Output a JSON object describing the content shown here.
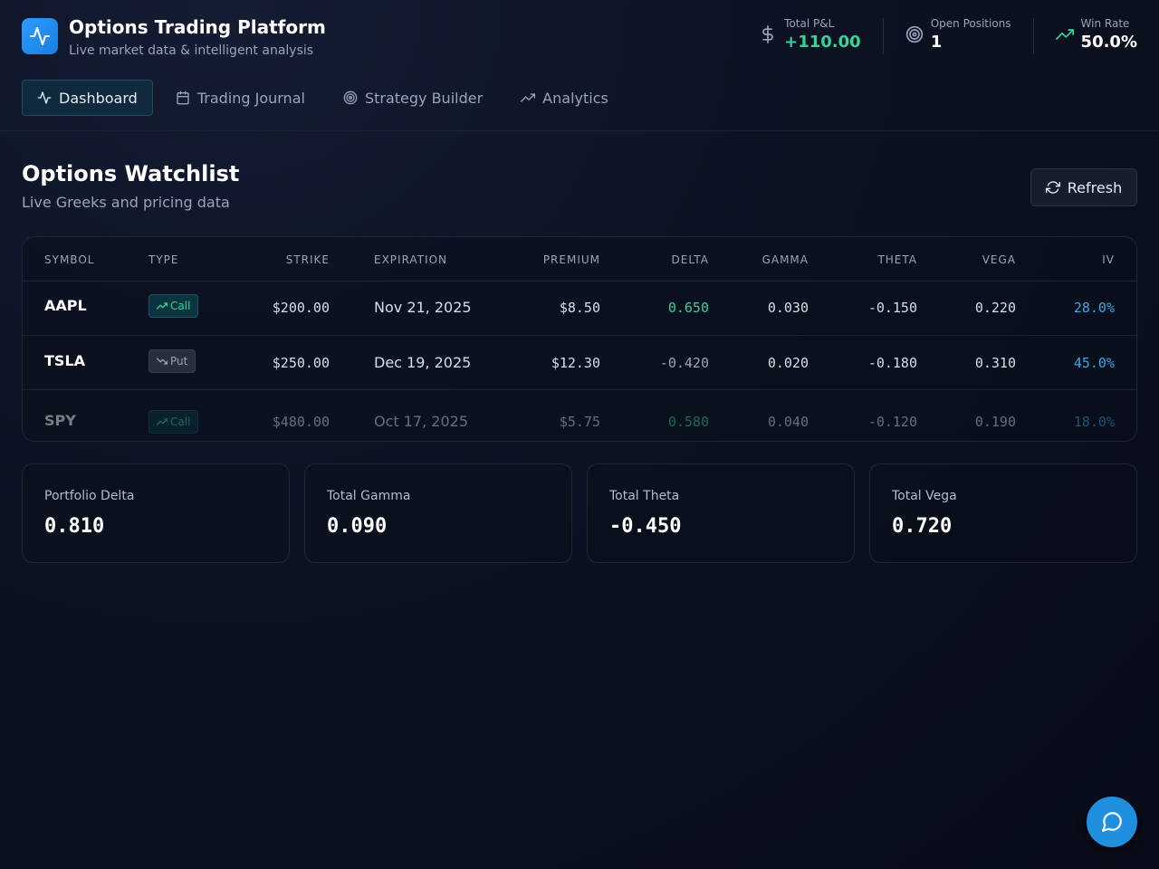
{
  "app": {
    "title": "Options Trading Platform",
    "subtitle": "Live market data & intelligent analysis"
  },
  "stats": [
    {
      "label": "Total P&L",
      "value": "+110.00",
      "icon": "dollar-icon"
    },
    {
      "label": "Open Positions",
      "value": "1",
      "icon": "target-icon"
    },
    {
      "label": "Win Rate",
      "value": "50.0%",
      "icon": "trending-up-icon"
    }
  ],
  "tabs": [
    {
      "label": "Dashboard",
      "icon": "activity-icon",
      "active": true
    },
    {
      "label": "Trading Journal",
      "icon": "calendar-icon",
      "active": false
    },
    {
      "label": "Strategy Builder",
      "icon": "target-icon",
      "active": false
    },
    {
      "label": "Analytics",
      "icon": "trending-up-icon",
      "active": false
    }
  ],
  "watchlist": {
    "title": "Options Watchlist",
    "subtitle": "Live Greeks and pricing data",
    "refresh_label": "Refresh",
    "columns": [
      "SYMBOL",
      "TYPE",
      "STRIKE",
      "EXPIRATION",
      "PREMIUM",
      "DELTA",
      "GAMMA",
      "THETA",
      "VEGA",
      "IV"
    ],
    "rows": [
      {
        "symbol": "AAPL",
        "type": "Call",
        "strike": "$200.00",
        "expiration": "Nov 21, 2025",
        "premium": "$8.50",
        "delta": "0.650",
        "gamma": "0.030",
        "theta": "-0.150",
        "vega": "0.220",
        "iv": "28.0%"
      },
      {
        "symbol": "TSLA",
        "type": "Put",
        "strike": "$250.00",
        "expiration": "Dec 19, 2025",
        "premium": "$12.30",
        "delta": "-0.420",
        "gamma": "0.020",
        "theta": "-0.180",
        "vega": "0.310",
        "iv": "45.0%"
      },
      {
        "symbol": "SPY",
        "type": "Call",
        "strike": "$480.00",
        "expiration": "Oct 17, 2025",
        "premium": "$5.75",
        "delta": "0.580",
        "gamma": "0.040",
        "theta": "-0.120",
        "vega": "0.190",
        "iv": "18.0%"
      }
    ]
  },
  "summary": [
    {
      "label": "Portfolio Delta",
      "value": "0.810"
    },
    {
      "label": "Total Gamma",
      "value": "0.090"
    },
    {
      "label": "Total Theta",
      "value": "-0.450"
    },
    {
      "label": "Total Vega",
      "value": "0.720"
    }
  ],
  "colors": {
    "accent": "#1f8fe0",
    "positive": "#34d399",
    "iv": "#38a8e8",
    "background": "#0c1222"
  }
}
